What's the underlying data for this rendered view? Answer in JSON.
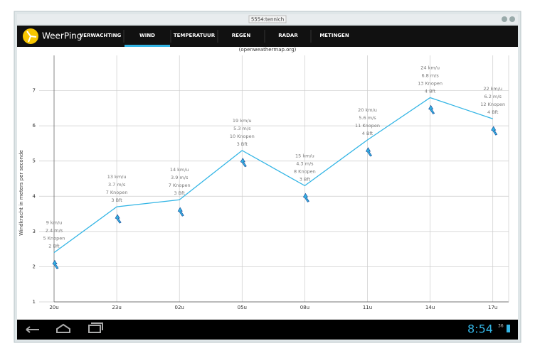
{
  "window": {
    "title": "5554:tennich"
  },
  "app": {
    "name": "WeerPing",
    "tabs": [
      "VERWACHTING",
      "WIND",
      "TEMPERATUUR",
      "REGEN",
      "RADAR",
      "METINGEN"
    ],
    "selected_tab": 1
  },
  "status": {
    "time": "8:54",
    "signal": "36"
  },
  "chart_data": {
    "type": "line",
    "title": "(openweathermap.org)",
    "y_label": "Windkracht in meters per seconde",
    "categories": [
      "20u",
      "23u",
      "02u",
      "05u",
      "08u",
      "11u",
      "14u",
      "17u"
    ],
    "series": [
      {
        "name": "m/s",
        "color": "#33b5e5",
        "values": [
          2.4,
          3.7,
          3.9,
          5.3,
          4.3,
          5.6,
          6.8,
          6.2
        ]
      }
    ],
    "annotations": [
      [
        "9 km/u",
        "2.4 m/s",
        "5 Knopen",
        "2 Bft"
      ],
      [
        "13 km/u",
        "3.7 m/s",
        "7 Knopen",
        "3 Bft"
      ],
      [
        "14 km/u",
        "3.9 m/s",
        "7 Knopen",
        "3 Bft"
      ],
      [
        "19 km/u",
        "5.3 m/s",
        "10 Knopen",
        "3 Bft"
      ],
      [
        "15 km/u",
        "4.3 m/s",
        "8 Knopen",
        "3 Bft"
      ],
      [
        "20 km/u",
        "5.6 m/s",
        "11 Knopen",
        "4 Bft"
      ],
      [
        "24 km/u",
        "6.8 m/s",
        "13 Knopen",
        "4 Bft"
      ],
      [
        "22 km/u",
        "6.2 m/s",
        "12 Knopen",
        "4 Bft"
      ]
    ],
    "ylim": [
      1,
      8
    ],
    "yticks": [
      1,
      2,
      3,
      4,
      5,
      6,
      7
    ],
    "grid": true
  }
}
